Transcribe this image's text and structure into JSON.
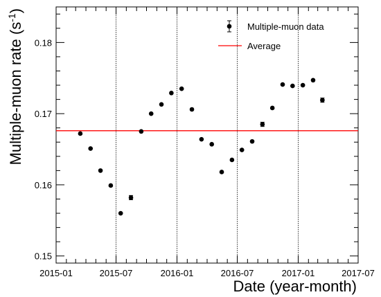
{
  "chart_data": {
    "type": "scatter",
    "xlabel": "Date (year-month)",
    "ylabel": "Multiple-muon rate (s",
    "ylabel_sup": "-1",
    "ylabel_close": ")",
    "xlim": [
      "2015-01-01",
      "2017-07-01"
    ],
    "ylim": [
      0.149,
      0.185
    ],
    "x_ticks": [
      "2015-01",
      "2015-07",
      "2016-01",
      "2016-07",
      "2017-01",
      "2017-07"
    ],
    "y_ticks": [
      "0.15",
      "0.16",
      "0.17",
      "0.18"
    ],
    "vertical_dashed_lines": [
      "2015-07-01",
      "2016-01-01",
      "2016-07-01",
      "2017-01-01"
    ],
    "legend_position": "top-right",
    "series": [
      {
        "name": "Multiple-muon data",
        "marker": "circle",
        "color": "#000000",
        "x": [
          "2015-03-15",
          "2015-04-15",
          "2015-05-15",
          "2015-06-15",
          "2015-07-15",
          "2015-08-15",
          "2015-09-15",
          "2015-10-15",
          "2015-11-15",
          "2015-12-15",
          "2016-01-15",
          "2016-02-15",
          "2016-03-15",
          "2016-04-15",
          "2016-05-15",
          "2016-06-15",
          "2016-07-15",
          "2016-08-15",
          "2016-09-15",
          "2016-10-15",
          "2016-11-15",
          "2016-12-15",
          "2017-01-15",
          "2017-02-15",
          "2017-03-15"
        ],
        "y": [
          0.1672,
          0.1651,
          0.162,
          0.1599,
          0.156,
          0.1582,
          0.1675,
          0.17,
          0.1713,
          0.1729,
          0.1735,
          0.1706,
          0.1664,
          0.1657,
          0.1618,
          0.1635,
          0.1649,
          0.1661,
          0.1685,
          0.1708,
          0.1741,
          0.1739,
          0.174,
          0.1747,
          0.1719
        ],
        "yerr": [
          0.00015,
          0.00015,
          0.00015,
          0.00015,
          0.00015,
          0.0003,
          0.00015,
          0.00015,
          0.00015,
          0.00015,
          0.00015,
          0.00015,
          0.00015,
          0.00015,
          0.00015,
          0.00015,
          0.00015,
          0.00015,
          0.0003,
          0.00015,
          0.00015,
          0.00015,
          0.00015,
          0.00015,
          0.0003
        ]
      },
      {
        "name": "Average",
        "type": "hline",
        "color": "#ff0000",
        "value": 0.1676
      }
    ]
  }
}
